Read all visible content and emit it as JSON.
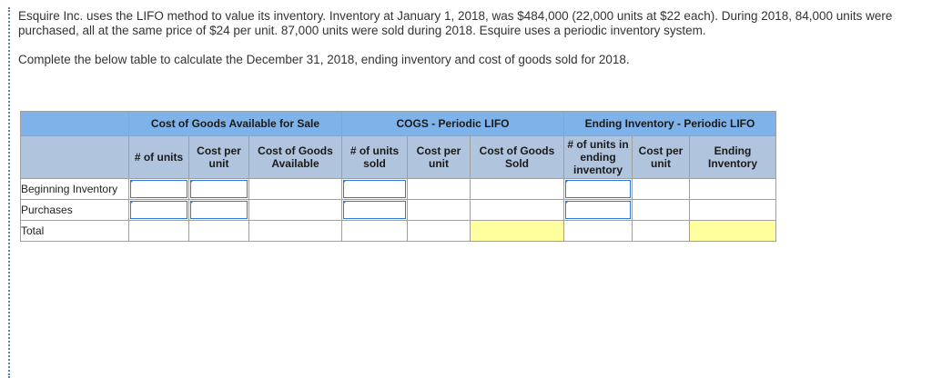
{
  "problem": {
    "paragraph1": "Esquire Inc. uses the LIFO method to value its inventory. Inventory at January 1, 2018, was $484,000 (22,000 units at $22 each). During 2018, 84,000 units were purchased, all at the same price of $24 per unit. 87,000 units were sold during 2018. Esquire uses a periodic inventory system.",
    "paragraph2": "Complete the below table to calculate the December 31, 2018, ending inventory and cost of goods sold for 2018."
  },
  "table": {
    "groups": {
      "available": "Cost of Goods Available for Sale",
      "cogs": "COGS - Periodic LIFO",
      "ending": "Ending Inventory - Periodic LIFO"
    },
    "columns": {
      "units": "# of units",
      "cost_per_unit_1": "Cost per unit",
      "cogs_available": "Cost of Goods Available",
      "units_sold": "# of units sold",
      "cost_per_unit_2": "Cost per unit",
      "cogs_sold": "Cost of Goods Sold",
      "units_ending": "# of units in ending inventory",
      "cost_per_unit_3": "Cost per unit",
      "ending_inventory": "Ending Inventory"
    },
    "rows": [
      {
        "label": "Beginning Inventory"
      },
      {
        "label": "Purchases"
      },
      {
        "label": "Total"
      }
    ]
  },
  "colors": {
    "group_header": "#7fb2e8",
    "sub_header": "#b0c4de",
    "highlight": "#ffffa0",
    "input_border": "#2c7be5"
  }
}
